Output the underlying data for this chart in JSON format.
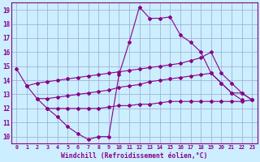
{
  "xlabel": "Windchill (Refroidissement éolien,°C)",
  "xlim": [
    -0.5,
    23.5
  ],
  "ylim": [
    9.5,
    19.5
  ],
  "xticks": [
    0,
    1,
    2,
    3,
    4,
    5,
    6,
    7,
    8,
    9,
    10,
    11,
    12,
    13,
    14,
    15,
    16,
    17,
    18,
    19,
    20,
    21,
    22,
    23
  ],
  "yticks": [
    10,
    11,
    12,
    13,
    14,
    15,
    16,
    17,
    18,
    19
  ],
  "background_color": "#cceeff",
  "line_color": "#880088",
  "grid_color": "#99aacc",
  "series": [
    {
      "x": [
        0,
        1,
        2,
        3,
        4,
        5,
        6,
        7,
        8,
        9,
        10,
        11,
        12,
        13,
        14,
        15,
        16,
        17,
        18,
        19,
        20,
        21,
        22,
        23
      ],
      "y": [
        14.8,
        13.6,
        12.7,
        12.0,
        11.4,
        10.7,
        10.2,
        9.8,
        10.0,
        10.0,
        14.4,
        16.7,
        19.2,
        18.4,
        18.4,
        18.5,
        17.2,
        16.7,
        16.0,
        14.5,
        13.8,
        13.1,
        12.6,
        null
      ]
    },
    {
      "x": [
        1,
        2,
        3,
        4,
        5,
        6,
        7,
        8,
        9,
        10,
        11,
        12,
        13,
        14,
        15,
        16,
        17,
        18,
        19,
        20,
        21,
        22,
        23
      ],
      "y": [
        13.6,
        13.8,
        13.9,
        14.0,
        14.1,
        14.2,
        14.3,
        14.4,
        14.5,
        14.6,
        14.7,
        14.8,
        14.9,
        15.0,
        15.1,
        15.2,
        15.4,
        15.6,
        16.0,
        14.5,
        13.8,
        13.1,
        12.6
      ]
    },
    {
      "x": [
        2,
        3,
        4,
        5,
        6,
        7,
        8,
        9,
        10,
        11,
        12,
        13,
        14,
        15,
        16,
        17,
        18,
        19,
        20,
        21,
        22,
        23
      ],
      "y": [
        12.7,
        12.7,
        12.8,
        12.9,
        13.0,
        13.1,
        13.2,
        13.3,
        13.5,
        13.6,
        13.7,
        13.9,
        14.0,
        14.1,
        14.2,
        14.3,
        14.4,
        14.5,
        13.8,
        13.1,
        13.1,
        12.6
      ]
    },
    {
      "x": [
        3,
        4,
        5,
        6,
        7,
        8,
        9,
        10,
        11,
        12,
        13,
        14,
        15,
        16,
        17,
        18,
        19,
        20,
        21,
        22,
        23
      ],
      "y": [
        12.0,
        12.0,
        12.0,
        12.0,
        12.0,
        12.0,
        12.1,
        12.2,
        12.2,
        12.3,
        12.3,
        12.4,
        12.5,
        12.5,
        12.5,
        12.5,
        12.5,
        12.5,
        12.5,
        12.5,
        12.6
      ]
    }
  ]
}
